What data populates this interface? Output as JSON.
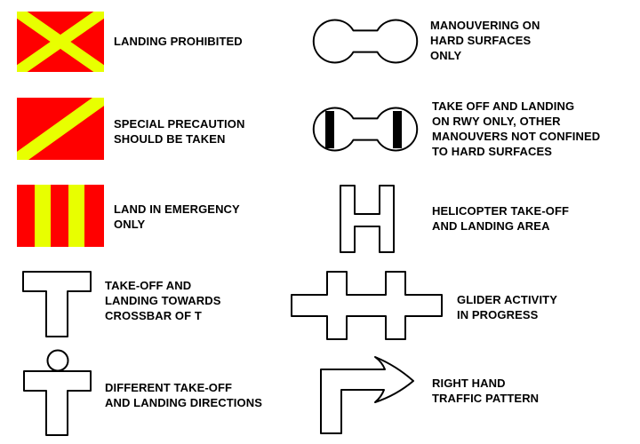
{
  "colors": {
    "signal_red": "#ff0000",
    "signal_yellow": "#e8ff00",
    "outline": "#000000",
    "background": "#ffffff"
  },
  "signals": [
    {
      "id": "landing-prohibited",
      "icon": "red-panel-yellow-diagonal-cross-icon",
      "label": "LANDING PROHIBITED"
    },
    {
      "id": "special-precaution",
      "icon": "red-panel-yellow-single-diagonal-icon",
      "label": "SPECIAL PRECAUTION\nSHOULD BE TAKEN"
    },
    {
      "id": "land-in-emergency",
      "icon": "red-panel-yellow-vertical-stripes-icon",
      "label": "LAND IN EMERGENCY\nONLY"
    },
    {
      "id": "landing-t",
      "icon": "landing-t-icon",
      "label": "TAKE-OFF AND\nLANDING TOWARDS\nCROSSBAR OF T"
    },
    {
      "id": "different-directions",
      "icon": "landing-t-with-disc-icon",
      "label": "DIFFERENT TAKE-OFF\nAND LANDING DIRECTIONS"
    },
    {
      "id": "hard-surfaces-only",
      "icon": "dumb-bell-icon",
      "label": "MANOUVERING ON\nHARD SURFACES\nONLY"
    },
    {
      "id": "rwy-only",
      "icon": "dumb-bell-black-bars-icon",
      "label": "TAKE OFF AND LANDING\nON RWY ONLY, OTHER\nMANOUVERS NOT CONFINED\nTO HARD SURFACES"
    },
    {
      "id": "helicopter-area",
      "icon": "letter-h-icon",
      "label": "HELICOPTER TAKE-OFF\nAND LANDING AREA"
    },
    {
      "id": "glider-activity",
      "icon": "double-white-cross-icon",
      "label": "GLIDER ACTIVITY\nIN PROGRESS"
    },
    {
      "id": "right-hand-traffic",
      "icon": "right-hand-arrow-icon",
      "label": "RIGHT HAND\nTRAFFIC PATTERN"
    }
  ]
}
